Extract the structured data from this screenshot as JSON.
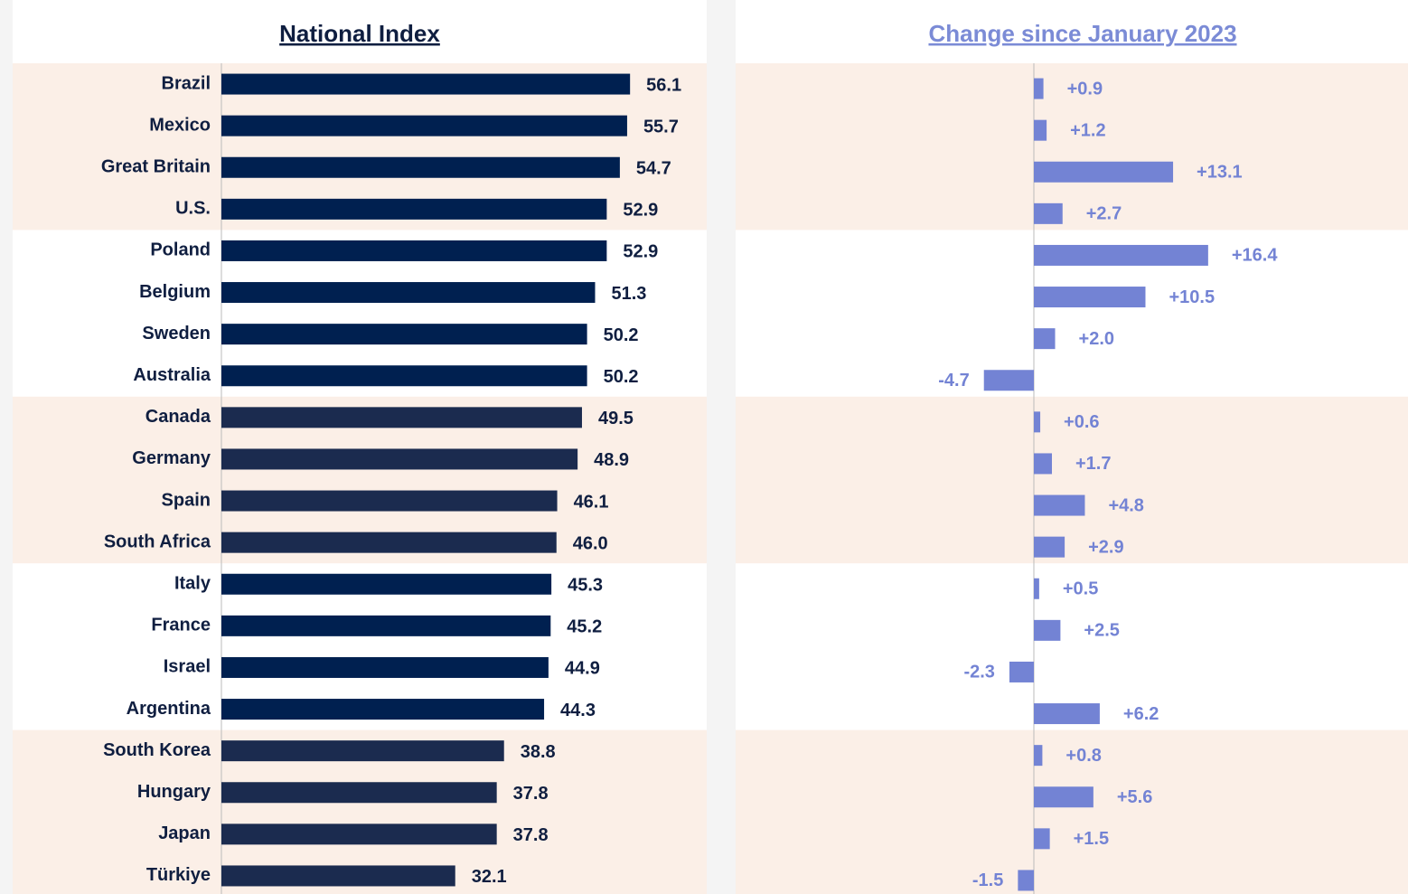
{
  "chart_data": [
    {
      "type": "bar",
      "orientation": "horizontal",
      "title": "National Index",
      "categories": [
        "Brazil",
        "Mexico",
        "Great Britain",
        "U.S.",
        "Poland",
        "Belgium",
        "Sweden",
        "Australia",
        "Canada",
        "Germany",
        "Spain",
        "South Africa",
        "Italy",
        "France",
        "Israel",
        "Argentina",
        "South Korea",
        "Hungary",
        "Japan",
        "Türkiye"
      ],
      "values": [
        56.1,
        55.7,
        54.7,
        52.9,
        52.9,
        51.3,
        50.2,
        50.2,
        49.5,
        48.9,
        46.1,
        46.0,
        45.3,
        45.2,
        44.9,
        44.3,
        38.8,
        37.8,
        37.8,
        32.1
      ],
      "value_labels": [
        "56.1",
        "55.7",
        "54.7",
        "52.9",
        "52.9",
        "51.3",
        "50.2",
        "50.2",
        "49.5",
        "48.9",
        "46.1",
        "46.0",
        "45.3",
        "45.2",
        "44.9",
        "44.3",
        "38.8",
        "37.8",
        "37.8",
        "32.1"
      ],
      "colors": [
        "#002050",
        "#002050",
        "#002050",
        "#002050",
        "#002050",
        "#002050",
        "#002050",
        "#002050",
        "#1b2b4f",
        "#1b2b4f",
        "#1b2b4f",
        "#1b2b4f",
        "#002050",
        "#002050",
        "#002050",
        "#002050",
        "#1b2b4f",
        "#1b2b4f",
        "#1b2b4f",
        "#1b2b4f"
      ]
    },
    {
      "type": "bar",
      "orientation": "horizontal",
      "title": "Change since January 2023",
      "values": [
        0.9,
        1.2,
        13.1,
        2.7,
        16.4,
        10.5,
        2.0,
        -4.7,
        0.6,
        1.7,
        4.8,
        2.9,
        0.5,
        2.5,
        -2.3,
        6.2,
        0.8,
        5.6,
        1.5,
        -1.5
      ],
      "value_labels": [
        "+0.9",
        "+1.2",
        "+13.1",
        "+2.7",
        "+16.4",
        "+10.5",
        "+2.0",
        "-4.7",
        "+0.6",
        "+1.7",
        "+4.8",
        "+2.9",
        "+0.5",
        "+2.5",
        "-2.3",
        "+6.2",
        "+0.8",
        "+5.6",
        "+1.5",
        "-1.5"
      ],
      "color": "#7383d4"
    }
  ]
}
